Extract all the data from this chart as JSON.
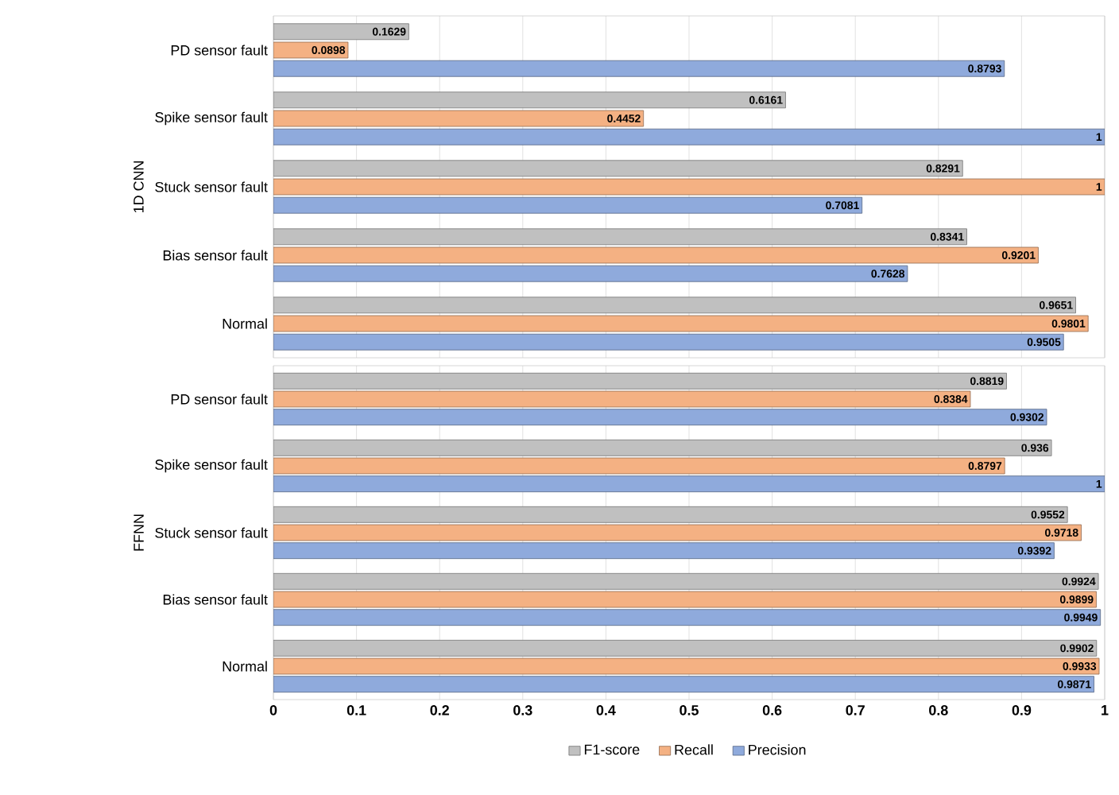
{
  "chart_data": [
    {
      "type": "bar",
      "orientation": "horizontal",
      "ylabel": "1D CNN",
      "categories": [
        "PD sensor fault",
        "Spike sensor fault",
        "Stuck sensor fault",
        "Bias sensor fault",
        "Normal"
      ],
      "series": [
        {
          "name": "F1-score",
          "color": "#c0c0c0",
          "values": [
            0.1629,
            0.6161,
            0.8291,
            0.8341,
            0.9651
          ]
        },
        {
          "name": "Recall",
          "color": "#f4b183",
          "values": [
            0.0898,
            0.4452,
            1,
            0.9201,
            0.9801
          ]
        },
        {
          "name": "Precision",
          "color": "#8faadc",
          "values": [
            0.8793,
            1,
            0.7081,
            0.7628,
            0.9505
          ]
        }
      ],
      "xlim": [
        0,
        1
      ],
      "xticks": [
        0,
        0.1,
        0.2,
        0.3,
        0.4,
        0.5,
        0.6,
        0.7,
        0.8,
        0.9,
        1
      ],
      "grid": "x",
      "data_labels": true,
      "tick_labels": "y",
      "legend": "bottom"
    },
    {
      "type": "bar",
      "orientation": "horizontal",
      "ylabel": "FFNN",
      "categories": [
        "PD sensor fault",
        "Spike sensor fault",
        "Stuck sensor fault",
        "Bias sensor fault",
        "Normal"
      ],
      "series": [
        {
          "color": "#c0c0c0",
          "values": [
            0.8819,
            0.936,
            0.9552,
            0.9924,
            0.9902
          ]
        },
        {
          "color": "#f4b183",
          "values": [
            0.8384,
            0.8797,
            0.9718,
            0.9899,
            0.9933
          ]
        },
        {
          "color": "#8faadc",
          "values": [
            0.9302,
            1,
            0.9392,
            0.9949,
            0.9871
          ]
        }
      ],
      "xlim": [
        0,
        1
      ],
      "xticks": [
        0,
        0.1,
        0.2,
        0.3,
        0.4,
        0.5,
        0.6,
        0.7,
        0.8,
        0.9,
        1
      ],
      "grid": "x",
      "data_labels": true
    }
  ]
}
